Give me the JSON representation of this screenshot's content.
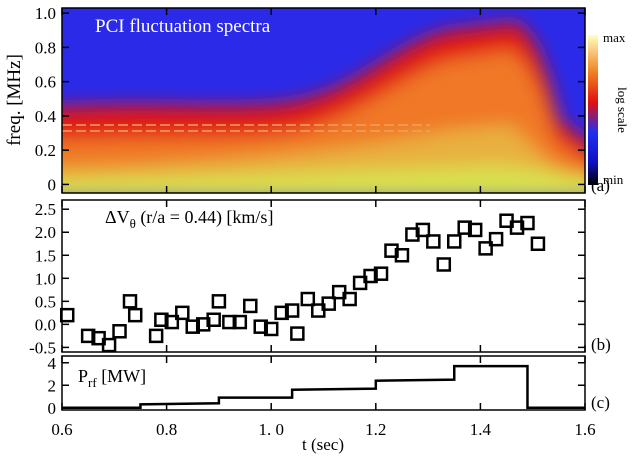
{
  "chart_data": [
    {
      "type": "spectrogram",
      "title": "PCI fluctuation spectra",
      "ylabel": "freq. [MHz]",
      "panel_label": "(a)",
      "ylim": [
        -0.05,
        1.03
      ],
      "yticks": [
        0,
        0.2,
        0.4,
        0.6,
        0.8,
        {
          "value": 1.0,
          "label": "1.0"
        }
      ],
      "colorbar": {
        "max": "max",
        "min": "min",
        "label": "log scale"
      }
    },
    {
      "type": "scatter",
      "title": [
        "ΔV",
        "θ",
        " (r/a = 0.44) [km/s]"
      ],
      "panel_label": "(b)",
      "x": [
        0.61,
        0.65,
        0.67,
        0.69,
        0.71,
        0.73,
        0.74,
        0.78,
        0.79,
        0.81,
        0.83,
        0.85,
        0.87,
        0.89,
        0.9,
        0.92,
        0.94,
        0.96,
        0.98,
        1.0,
        1.02,
        1.04,
        1.05,
        1.07,
        1.09,
        1.11,
        1.13,
        1.15,
        1.17,
        1.19,
        1.21,
        1.23,
        1.25,
        1.27,
        1.29,
        1.31,
        1.33,
        1.35,
        1.37,
        1.39,
        1.41,
        1.43,
        1.45,
        1.47,
        1.49,
        1.51
      ],
      "y": [
        0.2,
        -0.25,
        -0.3,
        -0.45,
        -0.15,
        0.5,
        0.2,
        -0.25,
        0.1,
        0.05,
        0.25,
        -0.05,
        0.0,
        0.1,
        0.5,
        0.05,
        0.05,
        0.4,
        -0.05,
        -0.1,
        0.25,
        0.3,
        -0.2,
        0.55,
        0.3,
        0.45,
        0.7,
        0.55,
        0.9,
        1.05,
        1.1,
        1.6,
        1.5,
        1.95,
        2.05,
        1.8,
        1.3,
        1.8,
        2.1,
        2.05,
        1.65,
        1.85,
        2.25,
        2.1,
        2.2,
        1.75
      ],
      "ylim": [
        -0.6,
        2.7
      ],
      "yticks": [
        -0.5,
        {
          "value": 0,
          "label": "0.0"
        },
        0.5,
        {
          "value": 1,
          "label": "1.0"
        },
        1.5,
        {
          "value": 2,
          "label": "2.0"
        },
        2.5
      ]
    },
    {
      "type": "line",
      "title": [
        "P",
        "rf",
        " [MW]"
      ],
      "panel_label": "(c)",
      "xlabel": "t (sec)",
      "x": [
        0.6,
        0.75,
        0.75,
        0.9,
        0.9,
        1.04,
        1.04,
        1.2,
        1.2,
        1.35,
        1.35,
        1.49,
        1.49,
        1.6
      ],
      "y": [
        0,
        0,
        0.3,
        0.4,
        0.9,
        0.9,
        1.6,
        1.7,
        2.4,
        2.5,
        3.7,
        3.7,
        0,
        0
      ],
      "xlim": [
        0.6,
        1.6
      ],
      "ylim": [
        -0.2,
        4.6
      ],
      "xticks": [
        0.6,
        0.8,
        {
          "value": 1.0,
          "label": "1. 0"
        },
        1.2,
        1.4,
        1.6
      ],
      "yticks": [
        0,
        2,
        4
      ]
    }
  ]
}
